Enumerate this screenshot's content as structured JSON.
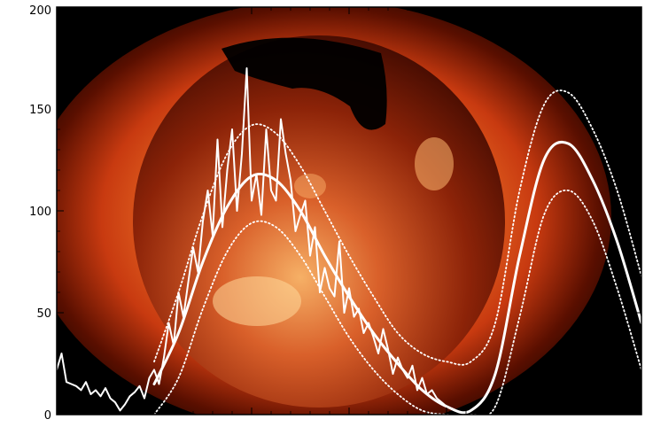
{
  "colors": {
    "background": "#ffffff",
    "frame": "#000000",
    "sun_core": "#ffb347",
    "sun_mid": "#e8501a",
    "sun_edge": "#7a1400",
    "series": "#ffffff",
    "tick_label": "#000000"
  },
  "chart_data": {
    "type": "line",
    "title": "",
    "xlabel": "",
    "ylabel": "",
    "ylim": [
      0,
      200
    ],
    "yticks": [
      0,
      50,
      100,
      150,
      200
    ],
    "xlim": [
      0,
      360
    ],
    "grid": false,
    "legend": "none",
    "background_image": "solar-corona-x-ray",
    "series": [
      {
        "style": "noisy-line",
        "x": [
          0,
          3,
          6,
          9,
          12,
          15,
          18,
          21,
          24,
          27,
          30,
          33,
          36,
          39,
          42,
          45,
          48,
          51,
          54,
          57,
          60,
          63,
          66,
          69,
          72,
          75,
          78,
          81,
          84,
          87,
          90,
          93,
          96,
          99,
          102,
          105,
          108,
          111,
          114,
          117,
          120,
          123,
          126,
          129,
          132,
          135,
          138,
          141,
          144,
          147,
          150,
          153,
          156,
          159,
          162,
          165,
          168,
          171,
          174,
          177,
          180,
          183,
          186,
          189,
          192,
          195,
          198,
          201,
          204,
          207,
          210,
          213,
          216,
          219,
          222,
          225,
          228,
          231,
          234,
          237,
          240
        ],
        "values": [
          22,
          30,
          16,
          15,
          14,
          12,
          16,
          10,
          12,
          9,
          13,
          8,
          6,
          2,
          5,
          9,
          11,
          14,
          8,
          18,
          22,
          15,
          28,
          45,
          34,
          60,
          48,
          65,
          82,
          70,
          95,
          110,
          88,
          135,
          92,
          120,
          140,
          100,
          128,
          170,
          105,
          118,
          98,
          140,
          110,
          105,
          145,
          128,
          115,
          90,
          98,
          105,
          78,
          92,
          60,
          72,
          62,
          58,
          85,
          50,
          62,
          48,
          52,
          40,
          45,
          38,
          30,
          42,
          32,
          20,
          28,
          22,
          18,
          24,
          12,
          18,
          10,
          12,
          8,
          6,
          4
        ]
      },
      {
        "style": "smooth-line",
        "x": [
          60,
          75,
          90,
          105,
          120,
          135,
          150,
          165,
          180,
          195,
          210,
          225,
          240,
          255,
          270,
          285,
          300,
          315,
          330,
          345,
          360
        ],
        "values": [
          15,
          40,
          75,
          102,
          117,
          115,
          100,
          78,
          58,
          40,
          25,
          12,
          4,
          2,
          20,
          78,
          125,
          133,
          115,
          85,
          45
        ]
      },
      {
        "style": "dotted-line",
        "x": [
          60,
          75,
          90,
          105,
          120,
          135,
          150,
          165,
          180,
          195,
          210,
          225,
          240,
          255,
          270,
          285,
          300,
          315,
          330,
          345,
          360
        ],
        "values": [
          26,
          60,
          98,
          128,
          142,
          138,
          122,
          100,
          78,
          58,
          40,
          30,
          26,
          26,
          45,
          110,
          152,
          158,
          140,
          110,
          68
        ]
      },
      {
        "style": "dotted-line",
        "x": [
          60,
          75,
          90,
          105,
          120,
          135,
          150,
          165,
          180,
          195,
          210,
          225,
          240,
          255,
          270,
          285,
          300,
          315,
          330,
          345,
          360
        ],
        "values": [
          0,
          18,
          52,
          80,
          94,
          92,
          78,
          58,
          38,
          22,
          10,
          2,
          0,
          0,
          4,
          48,
          98,
          110,
          95,
          62,
          22
        ]
      }
    ]
  }
}
